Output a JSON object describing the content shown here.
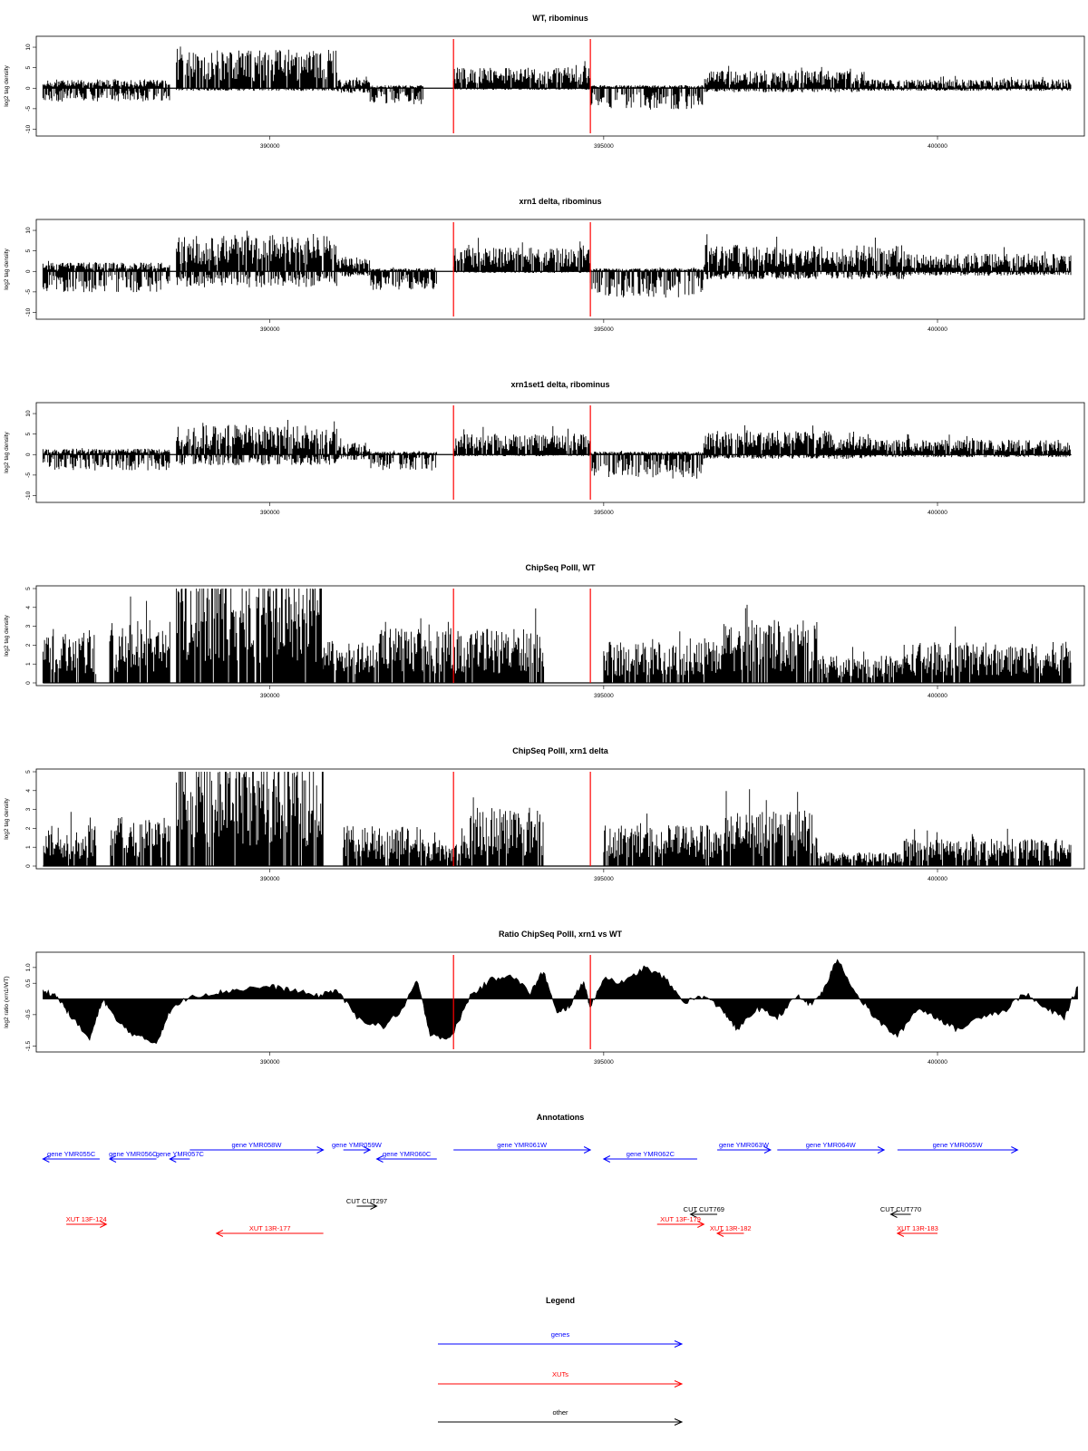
{
  "figure": {
    "x_ticks": [
      390000,
      395000,
      400000
    ],
    "x_tick_labels": [
      "390000",
      "395000",
      "400000"
    ],
    "xlim": [
      386500,
      402200
    ],
    "red_marker_positions": [
      392750,
      394800
    ],
    "colors": {
      "signal": "#000000",
      "marker": "#ff0000",
      "gene": "#0000ff",
      "xut": "#ff0000",
      "other": "#000000"
    }
  },
  "chart_data": [
    {
      "type": "bar",
      "title": "WT, ribominus",
      "ylabel": "log2 tag density",
      "ylim": [
        -11,
        12
      ],
      "y_ticks": [
        -10,
        -5,
        0,
        5,
        10
      ],
      "y_tick_labels": [
        "-10",
        "-5",
        "0",
        "5",
        "10"
      ],
      "xlabel": "",
      "segments": [
        {
          "from": 386600,
          "to": 388500,
          "pos": 1.5,
          "neg": 2.5
        },
        {
          "from": 388600,
          "to": 391000,
          "pos": 6.5,
          "neg": 0.5
        },
        {
          "from": 391000,
          "to": 391500,
          "pos": 1.5,
          "neg": 1
        },
        {
          "from": 391500,
          "to": 392300,
          "pos": 0.5,
          "neg": 3
        },
        {
          "from": 392750,
          "to": 394800,
          "pos": 3.5,
          "neg": 0.3
        },
        {
          "from": 394800,
          "to": 396500,
          "pos": 0.5,
          "neg": 4
        },
        {
          "from": 396500,
          "to": 398900,
          "pos": 3,
          "neg": 0.8
        },
        {
          "from": 398900,
          "to": 402000,
          "pos": 1.5,
          "neg": 0.5
        }
      ]
    },
    {
      "type": "bar",
      "title": "xrn1 delta, ribominus",
      "ylabel": "log2 tag density",
      "ylim": [
        -11,
        12
      ],
      "y_ticks": [
        -10,
        -5,
        0,
        5,
        10
      ],
      "y_tick_labels": [
        "-10",
        "-5",
        "0",
        "5",
        "10"
      ],
      "xlabel": "",
      "segments": [
        {
          "from": 386600,
          "to": 388500,
          "pos": 1.5,
          "neg": 4
        },
        {
          "from": 388600,
          "to": 391000,
          "pos": 6,
          "neg": 3
        },
        {
          "from": 391000,
          "to": 391500,
          "pos": 2.5,
          "neg": 1
        },
        {
          "from": 391500,
          "to": 392500,
          "pos": 0.5,
          "neg": 3.5
        },
        {
          "from": 392750,
          "to": 394800,
          "pos": 4,
          "neg": 0.3
        },
        {
          "from": 394800,
          "to": 396500,
          "pos": 0.5,
          "neg": 5
        },
        {
          "from": 396500,
          "to": 399500,
          "pos": 4.5,
          "neg": 1.5
        },
        {
          "from": 399500,
          "to": 402000,
          "pos": 3,
          "neg": 0.8
        }
      ]
    },
    {
      "type": "bar",
      "title": "xrn1set1 delta, ribominus",
      "ylabel": "log2 tag density",
      "ylim": [
        -11,
        12
      ],
      "y_ticks": [
        -10,
        -5,
        0,
        5,
        10
      ],
      "y_tick_labels": [
        "-10",
        "-5",
        "0",
        "5",
        "10"
      ],
      "xlabel": "",
      "segments": [
        {
          "from": 386600,
          "to": 388500,
          "pos": 1,
          "neg": 3
        },
        {
          "from": 388600,
          "to": 391000,
          "pos": 5,
          "neg": 2
        },
        {
          "from": 391000,
          "to": 391500,
          "pos": 2,
          "neg": 1
        },
        {
          "from": 391500,
          "to": 392500,
          "pos": 0.5,
          "neg": 3
        },
        {
          "from": 392750,
          "to": 394800,
          "pos": 3.5,
          "neg": 0.3
        },
        {
          "from": 394800,
          "to": 396500,
          "pos": 0.5,
          "neg": 4.5
        },
        {
          "from": 396500,
          "to": 399000,
          "pos": 4,
          "neg": 0.8
        },
        {
          "from": 399000,
          "to": 402000,
          "pos": 2.5,
          "neg": 0.5
        }
      ]
    },
    {
      "type": "bar",
      "title": "ChipSeq PolII, WT",
      "ylabel": "log2 tag density",
      "ylim": [
        0,
        5
      ],
      "y_ticks": [
        0,
        1,
        2,
        3,
        4,
        5
      ],
      "y_tick_labels": [
        "0",
        "1",
        "2",
        "3",
        "4",
        "5"
      ],
      "xlabel": "",
      "segments": [
        {
          "from": 386600,
          "to": 387400,
          "pos": 1.8,
          "neg": 0
        },
        {
          "from": 387600,
          "to": 388500,
          "pos": 2.3,
          "neg": 0
        },
        {
          "from": 388600,
          "to": 390800,
          "pos": 4.2,
          "neg": 0
        },
        {
          "from": 390800,
          "to": 391600,
          "pos": 1.5,
          "neg": 0
        },
        {
          "from": 391600,
          "to": 392300,
          "pos": 2,
          "neg": 0
        },
        {
          "from": 392300,
          "to": 394100,
          "pos": 2,
          "neg": 0
        },
        {
          "from": 395000,
          "to": 396800,
          "pos": 1.5,
          "neg": 0
        },
        {
          "from": 396800,
          "to": 398200,
          "pos": 2.3,
          "neg": 0
        },
        {
          "from": 398200,
          "to": 399500,
          "pos": 1,
          "neg": 0
        },
        {
          "from": 399500,
          "to": 402000,
          "pos": 1.5,
          "neg": 0
        }
      ]
    },
    {
      "type": "bar",
      "title": "ChipSeq PolII, xrn1 delta",
      "ylabel": "log2 tag density",
      "ylim": [
        0,
        5
      ],
      "y_ticks": [
        0,
        1,
        2,
        3,
        4,
        5
      ],
      "y_tick_labels": [
        "0",
        "1",
        "2",
        "3",
        "4",
        "5"
      ],
      "xlabel": "",
      "segments": [
        {
          "from": 386600,
          "to": 387400,
          "pos": 1.5,
          "neg": 0
        },
        {
          "from": 387600,
          "to": 388500,
          "pos": 1.8,
          "neg": 0
        },
        {
          "from": 388600,
          "to": 390800,
          "pos": 4,
          "neg": 0
        },
        {
          "from": 391100,
          "to": 392300,
          "pos": 1.5,
          "neg": 0
        },
        {
          "from": 392300,
          "to": 393000,
          "pos": 1,
          "neg": 0
        },
        {
          "from": 393000,
          "to": 394100,
          "pos": 2.2,
          "neg": 0
        },
        {
          "from": 395000,
          "to": 396800,
          "pos": 1.5,
          "neg": 0
        },
        {
          "from": 396800,
          "to": 398200,
          "pos": 2,
          "neg": 0
        },
        {
          "from": 398200,
          "to": 399500,
          "pos": 0.5,
          "neg": 0
        },
        {
          "from": 399500,
          "to": 402000,
          "pos": 1,
          "neg": 0
        }
      ]
    },
    {
      "type": "area",
      "title": "Ratio ChipSeq PolII, xrn1 vs WT",
      "ylabel": "log2 ratio (xrn1/WT)",
      "ylim": [
        -1.6,
        1.4
      ],
      "y_ticks": [
        -1.5,
        -0.5,
        0.5,
        1.0
      ],
      "y_tick_labels": [
        "-1.5",
        "-0.5",
        "0.5",
        "1.0"
      ],
      "xlabel": "",
      "x": [
        386600,
        386800,
        387000,
        387300,
        387500,
        387700,
        388000,
        388300,
        388500,
        388800,
        389200,
        389500,
        390000,
        390300,
        390700,
        391000,
        391300,
        391700,
        392000,
        392200,
        392400,
        392700,
        393000,
        393300,
        393600,
        393900,
        394100,
        394300,
        394500,
        394700,
        394800,
        395000,
        395300,
        395600,
        395900,
        396200,
        396500,
        396800,
        397000,
        397300,
        397600,
        397900,
        398100,
        398300,
        398500,
        398800,
        399100,
        399400,
        399700,
        400000,
        400300,
        400700,
        401000,
        401300,
        401600,
        401900,
        402100
      ],
      "y": [
        0.3,
        0.1,
        -0.5,
        -1.3,
        0.0,
        -0.7,
        -1.2,
        -1.4,
        -0.4,
        0.1,
        0.2,
        0.3,
        0.4,
        0.3,
        0.1,
        0.3,
        -0.6,
        -0.9,
        -0.3,
        0.6,
        -1.1,
        -1.3,
        0.1,
        0.6,
        0.8,
        0.2,
        0.9,
        -0.5,
        -0.2,
        0.6,
        -0.3,
        0.7,
        0.5,
        1.0,
        0.7,
        -0.1,
        0.1,
        -0.4,
        -1.0,
        -0.3,
        -0.6,
        0.1,
        -0.2,
        0.3,
        1.3,
        0.1,
        -0.7,
        -1.2,
        -0.3,
        -0.6,
        -1.0,
        -0.5,
        -0.4,
        0.2,
        -0.3,
        -0.6,
        0.4
      ]
    }
  ],
  "annotations": {
    "title": "Annotations",
    "features": [
      {
        "label": "gene YMR055C",
        "type": "gene",
        "from": 386600,
        "to": 387450,
        "strand": "-",
        "row": 1
      },
      {
        "label": "gene YMR056C",
        "type": "gene",
        "from": 387600,
        "to": 388300,
        "strand": "-",
        "row": 1
      },
      {
        "label": "gene YMR057C",
        "type": "gene",
        "from": 388500,
        "to": 388800,
        "strand": "-",
        "row": 1
      },
      {
        "label": "gene YMR058W",
        "type": "gene",
        "from": 388800,
        "to": 390800,
        "strand": "+",
        "row": 0
      },
      {
        "label": "gene YMR059W",
        "type": "gene",
        "from": 391100,
        "to": 391500,
        "strand": "+",
        "row": 0
      },
      {
        "label": "gene YMR060C",
        "type": "gene",
        "from": 391600,
        "to": 392500,
        "strand": "-",
        "row": 1
      },
      {
        "label": "gene YMR061W",
        "type": "gene",
        "from": 392750,
        "to": 394800,
        "strand": "+",
        "row": 0
      },
      {
        "label": "gene YMR062C",
        "type": "gene",
        "from": 395000,
        "to": 396400,
        "strand": "-",
        "row": 1
      },
      {
        "label": "gene YMR063W",
        "type": "gene",
        "from": 396700,
        "to": 397500,
        "strand": "+",
        "row": 0
      },
      {
        "label": "gene YMR064W",
        "type": "gene",
        "from": 397600,
        "to": 399200,
        "strand": "+",
        "row": 0
      },
      {
        "label": "gene YMR065W",
        "type": "gene",
        "from": 399400,
        "to": 401200,
        "strand": "+",
        "row": 0
      },
      {
        "label": "CUT CUT297",
        "type": "other",
        "from": 391300,
        "to": 391600,
        "strand": "+",
        "row": 2
      },
      {
        "label": "CUT CUT769",
        "type": "other",
        "from": 396300,
        "to": 396700,
        "strand": "-",
        "row": 3
      },
      {
        "label": "CUT CUT770",
        "type": "other",
        "from": 399300,
        "to": 399600,
        "strand": "-",
        "row": 3
      },
      {
        "label": "XUT 13F-124",
        "type": "xut",
        "from": 386950,
        "to": 387550,
        "strand": "+",
        "row": 4
      },
      {
        "label": "XUT 13F-179",
        "type": "xut",
        "from": 395800,
        "to": 396500,
        "strand": "+",
        "row": 4
      },
      {
        "label": "XUT 13R-177",
        "type": "xut",
        "from": 389200,
        "to": 390800,
        "strand": "-",
        "row": 5
      },
      {
        "label": "XUT 13R-182",
        "type": "xut",
        "from": 396700,
        "to": 397100,
        "strand": "-",
        "row": 5
      },
      {
        "label": "XUT 13R-183",
        "type": "xut",
        "from": 399400,
        "to": 400000,
        "strand": "-",
        "row": 5
      }
    ]
  },
  "legend": {
    "title": "Legend",
    "items": [
      {
        "label": "genes",
        "type": "gene"
      },
      {
        "label": "XUTs",
        "type": "xut"
      },
      {
        "label": "other",
        "type": "other"
      }
    ]
  }
}
